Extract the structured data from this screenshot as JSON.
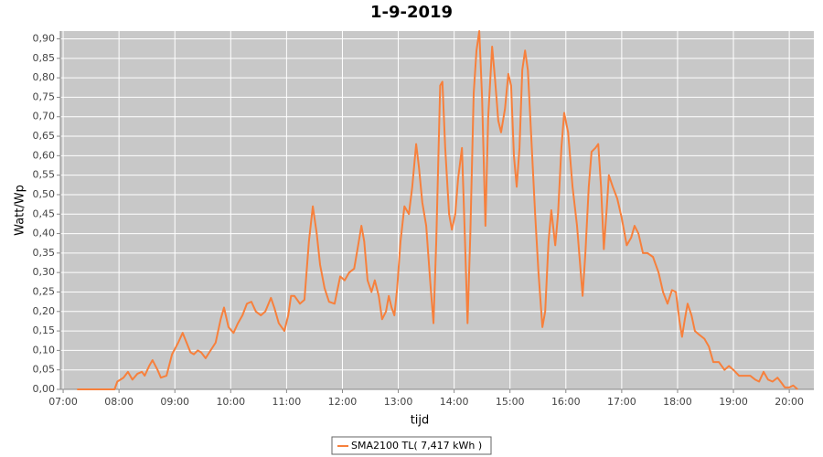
{
  "chart_data": {
    "type": "line",
    "title": "1-9-2019",
    "x_label": "tijd",
    "y_label": "Watt/Wp",
    "x": [
      7.25,
      7.92,
      7.97,
      8.08,
      8.16,
      8.24,
      8.33,
      8.41,
      8.46,
      8.54,
      8.6,
      8.69,
      8.75,
      8.85,
      8.95,
      9.06,
      9.14,
      9.21,
      9.28,
      9.34,
      9.41,
      9.47,
      9.55,
      9.64,
      9.73,
      9.82,
      9.88,
      9.96,
      10.05,
      10.13,
      10.21,
      10.29,
      10.37,
      10.45,
      10.54,
      10.62,
      10.72,
      10.78,
      10.86,
      10.96,
      11.03,
      11.08,
      11.14,
      11.24,
      11.32,
      11.4,
      11.47,
      11.54,
      11.6,
      11.68,
      11.76,
      11.86,
      11.96,
      12.04,
      12.12,
      12.21,
      12.27,
      12.34,
      12.39,
      12.45,
      12.52,
      12.58,
      12.65,
      12.71,
      12.78,
      12.83,
      12.88,
      12.93,
      12.98,
      13.04,
      13.11,
      13.19,
      13.25,
      13.32,
      13.37,
      13.43,
      13.5,
      13.57,
      13.63,
      13.68,
      13.75,
      13.79,
      13.84,
      13.91,
      13.96,
      14.02,
      14.07,
      14.14,
      14.19,
      14.24,
      14.29,
      14.35,
      14.4,
      14.45,
      14.5,
      14.56,
      14.61,
      14.68,
      14.73,
      14.79,
      14.84,
      14.91,
      14.97,
      15.02,
      15.07,
      15.12,
      15.17,
      15.22,
      15.27,
      15.32,
      15.38,
      15.45,
      15.51,
      15.58,
      15.63,
      15.69,
      15.74,
      15.81,
      15.86,
      15.92,
      15.97,
      16.04,
      16.12,
      16.2,
      16.25,
      16.3,
      16.35,
      16.41,
      16.46,
      16.53,
      16.58,
      16.63,
      16.68,
      16.73,
      16.77,
      16.84,
      16.92,
      17.0,
      17.09,
      17.17,
      17.23,
      17.3,
      17.38,
      17.46,
      17.56,
      17.66,
      17.74,
      17.82,
      17.9,
      17.97,
      18.03,
      18.08,
      18.13,
      18.18,
      18.25,
      18.31,
      18.39,
      18.48,
      18.56,
      18.64,
      18.74,
      18.84,
      18.92,
      19.0,
      19.1,
      19.2,
      19.3,
      19.39,
      19.46,
      19.54,
      19.62,
      19.7,
      19.79,
      19.87,
      19.92,
      20.0,
      20.07,
      20.15
    ],
    "series": [
      {
        "name": "SMA2100 TL( 7,417 kWh )",
        "color": "#f7803c",
        "values": [
          0,
          0,
          0.02,
          0.03,
          0.045,
          0.025,
          0.04,
          0.045,
          0.035,
          0.06,
          0.075,
          0.05,
          0.03,
          0.035,
          0.09,
          0.12,
          0.145,
          0.12,
          0.095,
          0.09,
          0.1,
          0.095,
          0.08,
          0.1,
          0.12,
          0.18,
          0.21,
          0.16,
          0.145,
          0.17,
          0.19,
          0.22,
          0.225,
          0.2,
          0.19,
          0.2,
          0.235,
          0.21,
          0.17,
          0.15,
          0.19,
          0.24,
          0.24,
          0.22,
          0.23,
          0.38,
          0.47,
          0.4,
          0.32,
          0.26,
          0.225,
          0.22,
          0.29,
          0.28,
          0.3,
          0.31,
          0.36,
          0.42,
          0.38,
          0.28,
          0.25,
          0.28,
          0.24,
          0.18,
          0.2,
          0.24,
          0.21,
          0.19,
          0.26,
          0.38,
          0.47,
          0.45,
          0.52,
          0.63,
          0.57,
          0.48,
          0.42,
          0.28,
          0.17,
          0.38,
          0.78,
          0.79,
          0.62,
          0.45,
          0.41,
          0.45,
          0.54,
          0.62,
          0.4,
          0.17,
          0.4,
          0.76,
          0.87,
          0.92,
          0.75,
          0.42,
          0.7,
          0.88,
          0.8,
          0.69,
          0.66,
          0.72,
          0.81,
          0.78,
          0.6,
          0.52,
          0.62,
          0.82,
          0.87,
          0.82,
          0.65,
          0.45,
          0.3,
          0.16,
          0.2,
          0.38,
          0.46,
          0.37,
          0.45,
          0.62,
          0.71,
          0.66,
          0.52,
          0.42,
          0.33,
          0.24,
          0.35,
          0.52,
          0.61,
          0.62,
          0.63,
          0.52,
          0.36,
          0.46,
          0.55,
          0.52,
          0.49,
          0.44,
          0.37,
          0.39,
          0.42,
          0.4,
          0.35,
          0.35,
          0.34,
          0.3,
          0.25,
          0.22,
          0.255,
          0.25,
          0.18,
          0.135,
          0.18,
          0.22,
          0.19,
          0.15,
          0.14,
          0.13,
          0.11,
          0.07,
          0.07,
          0.05,
          0.06,
          0.05,
          0.035,
          0.035,
          0.035,
          0.025,
          0.02,
          0.045,
          0.025,
          0.02,
          0.03,
          0.015,
          0.005,
          0.005,
          0.01,
          0
        ]
      }
    ],
    "xlim": [
      6.95,
      20.44
    ],
    "xticks": [
      {
        "value": 7,
        "label": "07:00"
      },
      {
        "value": 8,
        "label": "08:00"
      },
      {
        "value": 9,
        "label": "09:00"
      },
      {
        "value": 10,
        "label": "10:00"
      },
      {
        "value": 11,
        "label": "11:00"
      },
      {
        "value": 12,
        "label": "12:00"
      },
      {
        "value": 13,
        "label": "13:00"
      },
      {
        "value": 14,
        "label": "14:00"
      },
      {
        "value": 15,
        "label": "15:00"
      },
      {
        "value": 16,
        "label": "16:00"
      },
      {
        "value": 17,
        "label": "17:00"
      },
      {
        "value": 18,
        "label": "18:00"
      },
      {
        "value": 19,
        "label": "19:00"
      },
      {
        "value": 20,
        "label": "20:00"
      }
    ],
    "ylim": [
      0,
      0.92
    ],
    "yticks": [
      {
        "value": 0,
        "label": "0,00"
      },
      {
        "value": 0.05,
        "label": "0,05"
      },
      {
        "value": 0.1,
        "label": "0,10"
      },
      {
        "value": 0.15,
        "label": "0,15"
      },
      {
        "value": 0.2,
        "label": "0,20"
      },
      {
        "value": 0.25,
        "label": "0,25"
      },
      {
        "value": 0.3,
        "label": "0,30"
      },
      {
        "value": 0.35,
        "label": "0,35"
      },
      {
        "value": 0.4,
        "label": "0,40"
      },
      {
        "value": 0.45,
        "label": "0,45"
      },
      {
        "value": 0.5,
        "label": "0,50"
      },
      {
        "value": 0.55,
        "label": "0,55"
      },
      {
        "value": 0.6,
        "label": "0,60"
      },
      {
        "value": 0.65,
        "label": "0,65"
      },
      {
        "value": 0.7,
        "label": "0,70"
      },
      {
        "value": 0.75,
        "label": "0,75"
      },
      {
        "value": 0.8,
        "label": "0,80"
      },
      {
        "value": 0.85,
        "label": "0,85"
      },
      {
        "value": 0.9,
        "label": "0,90"
      }
    ],
    "grid": true,
    "legend": "bottom"
  }
}
